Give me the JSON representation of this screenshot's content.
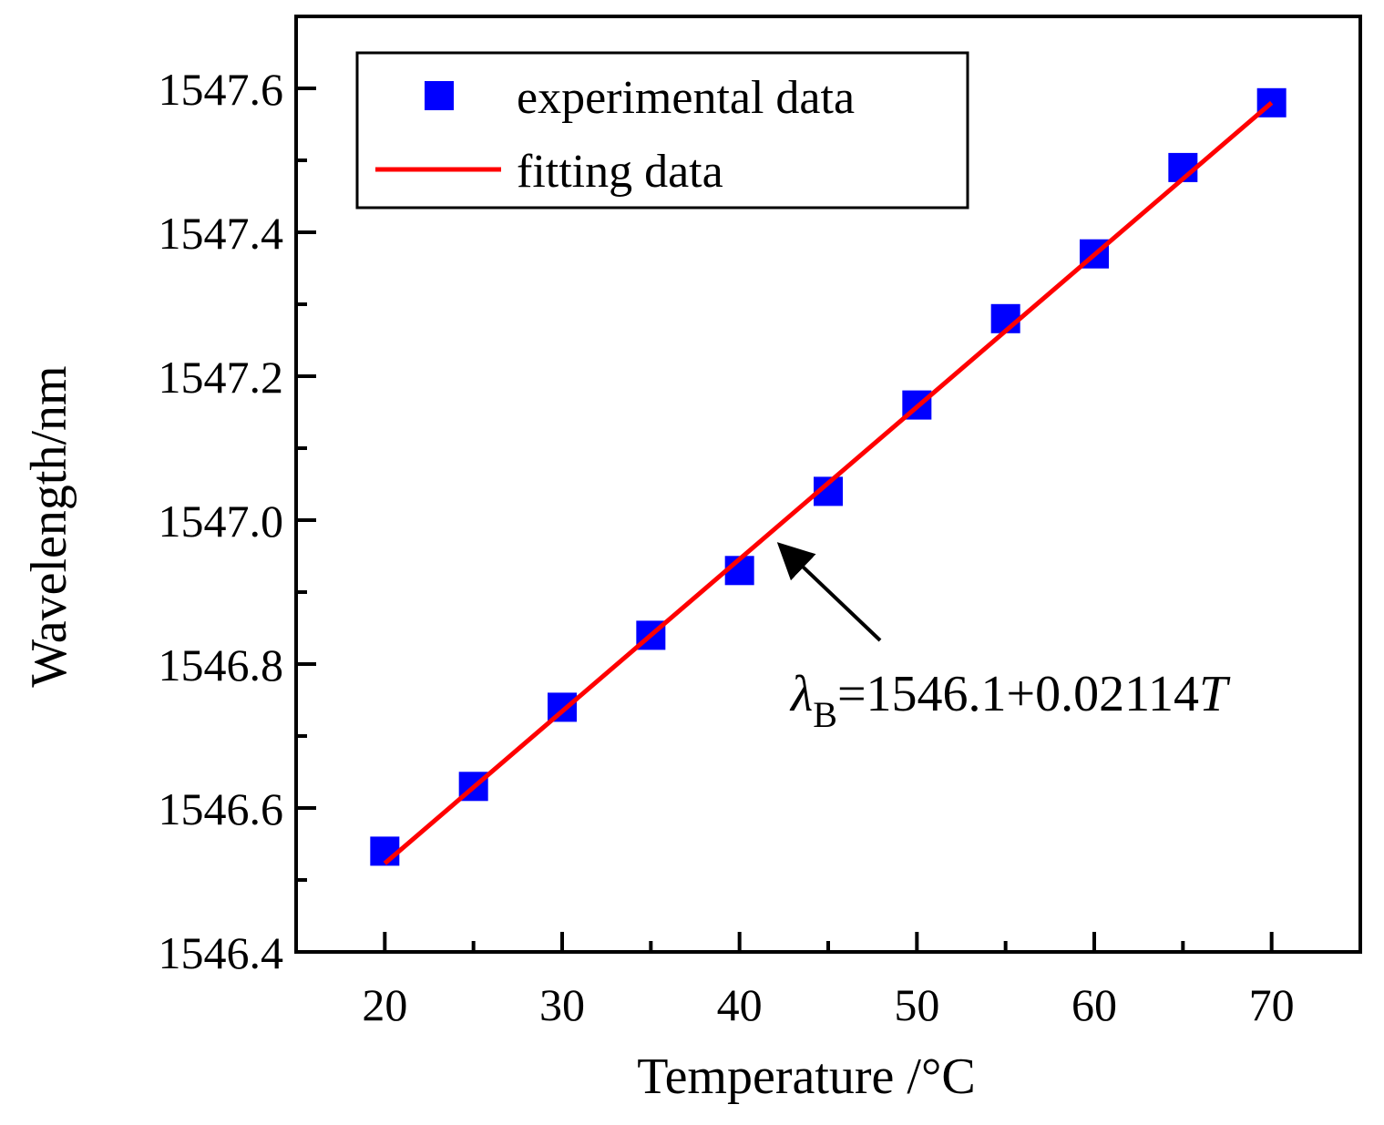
{
  "chart_data": {
    "type": "scatter",
    "title": "",
    "xlabel": "Temperature /°C",
    "ylabel": "Wavelength/nm",
    "xlim": [
      15,
      75
    ],
    "ylim": [
      1546.4,
      1547.7
    ],
    "xticks": [
      20,
      30,
      40,
      50,
      60,
      70
    ],
    "xtick_labels": [
      "20",
      "30",
      "40",
      "50",
      "60",
      "70"
    ],
    "yticks": [
      1546.4,
      1546.6,
      1546.8,
      1547.0,
      1547.2,
      1547.4,
      1547.6
    ],
    "ytick_labels": [
      "1546.4",
      "1546.6",
      "1546.8",
      "1547.0",
      "1547.2",
      "1547.4",
      "1547.6"
    ],
    "grid": false,
    "legend_position": "top-left",
    "series": [
      {
        "name": "experimental data",
        "kind": "scatter",
        "color": "#0000ff",
        "x": [
          20,
          25,
          30,
          35,
          40,
          45,
          50,
          55,
          60,
          65,
          70
        ],
        "y": [
          1546.54,
          1546.63,
          1546.74,
          1546.84,
          1546.93,
          1547.04,
          1547.16,
          1547.28,
          1547.37,
          1547.49,
          1547.58
        ]
      },
      {
        "name": "fitting data",
        "kind": "line",
        "color": "#ff0000",
        "x": [
          20,
          70
        ],
        "y": [
          1546.523,
          1547.58
        ]
      }
    ],
    "annotation": {
      "lambda_symbol": "λ",
      "subscript": "B",
      "expression": "=1546.1+0.02114",
      "variable": "T",
      "points_to_x": 42,
      "points_to_y": 1546.97,
      "anchor": "bottom-right"
    }
  }
}
